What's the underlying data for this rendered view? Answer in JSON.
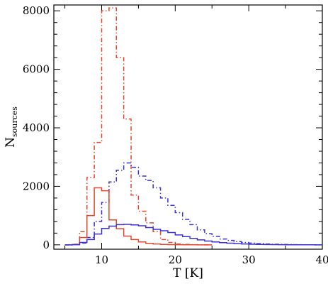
{
  "chart_data": {
    "type": "line",
    "title": "",
    "xlabel": "T [K]",
    "ylabel_main": "N",
    "ylabel_sub": "sources",
    "xlim": [
      3.5,
      40
    ],
    "ylim": [
      -150,
      8200
    ],
    "xticks": [
      10,
      20,
      30,
      40
    ],
    "xtick_labels": [
      "10",
      "20",
      "30",
      "40"
    ],
    "yticks": [
      0,
      2000,
      4000,
      6000,
      8000
    ],
    "ytick_labels": [
      "0",
      "2000",
      "4000",
      "6000",
      "8000"
    ],
    "grid": false,
    "legend": "none",
    "bin_width": 1,
    "series": [
      {
        "color": "#e8462d",
        "style": "dashdot",
        "step_x": [
          5,
          6,
          7,
          8,
          9,
          10,
          11,
          12,
          13,
          14,
          15,
          16,
          17,
          18,
          19,
          20,
          21,
          22,
          23,
          24,
          25
        ],
        "step_y": [
          0,
          20,
          450,
          2300,
          3500,
          8000,
          8100,
          6400,
          4300,
          1700,
          1150,
          750,
          450,
          180,
          80,
          30,
          15,
          5,
          2,
          0
        ]
      },
      {
        "color": "#3a30dd",
        "style": "dashdot",
        "step_x": [
          5,
          6,
          7,
          8,
          9,
          10,
          11,
          12,
          13,
          14,
          15,
          16,
          17,
          18,
          19,
          20,
          21,
          22,
          23,
          24,
          25,
          26,
          27,
          28,
          29,
          30,
          31,
          32,
          33,
          34,
          35,
          36,
          37,
          38,
          39,
          40
        ],
        "step_y": [
          0,
          10,
          60,
          250,
          800,
          1450,
          2150,
          2550,
          2800,
          2650,
          2350,
          2200,
          1950,
          1600,
          1350,
          1100,
          870,
          690,
          510,
          380,
          290,
          200,
          150,
          110,
          80,
          60,
          40,
          30,
          20,
          15,
          10,
          5,
          3,
          2,
          0
        ]
      },
      {
        "color": "#e8462d",
        "style": "solid",
        "step_x": [
          5,
          6,
          7,
          8,
          9,
          10,
          11,
          12,
          13,
          14,
          15,
          16,
          17,
          18,
          19,
          20,
          21,
          22,
          23,
          24,
          25
        ],
        "step_y": [
          0,
          10,
          250,
          1000,
          1950,
          1850,
          850,
          550,
          300,
          180,
          100,
          50,
          30,
          15,
          8,
          5,
          2,
          1,
          0,
          0
        ]
      },
      {
        "color": "#3a30dd",
        "style": "solid",
        "step_x": [
          5,
          6,
          7,
          8,
          9,
          10,
          11,
          12,
          13,
          14,
          15,
          16,
          17,
          18,
          19,
          20,
          21,
          22,
          23,
          24,
          25,
          26,
          27,
          28,
          29,
          30,
          31,
          32,
          33,
          34,
          35,
          36,
          37,
          38,
          39,
          40
        ],
        "step_y": [
          0,
          5,
          80,
          180,
          370,
          560,
          640,
          690,
          700,
          680,
          650,
          590,
          530,
          480,
          420,
          340,
          280,
          220,
          170,
          130,
          100,
          75,
          55,
          40,
          28,
          20,
          14,
          10,
          7,
          5,
          3,
          2,
          1,
          1,
          0
        ]
      }
    ]
  }
}
